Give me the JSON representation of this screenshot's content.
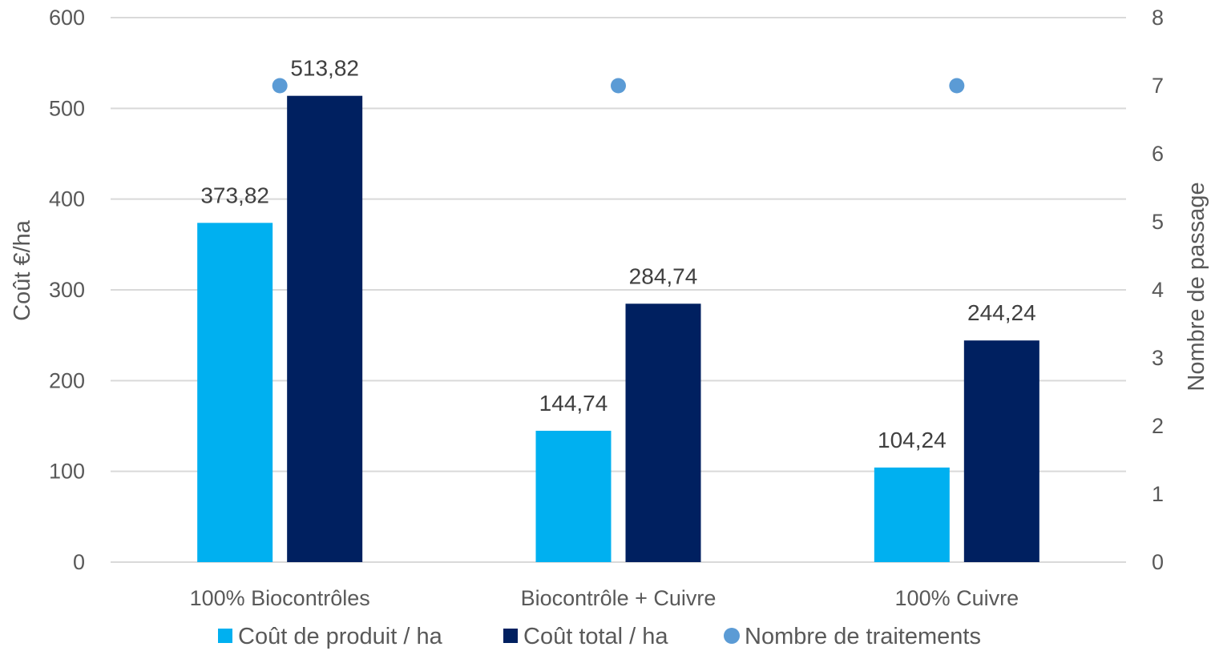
{
  "chart_data": {
    "type": "bar",
    "categories": [
      "100% Biocontrôles",
      "Biocontrôle + Cuivre",
      "100% Cuivre"
    ],
    "series": [
      {
        "name": "Coût de produit / ha",
        "type": "bar",
        "axis": "left",
        "color": "#00B0F0",
        "values": [
          373.82,
          144.74,
          104.24
        ],
        "labels": [
          "373,82",
          "144,74",
          "104,24"
        ]
      },
      {
        "name": "Coût total / ha",
        "type": "bar",
        "axis": "left",
        "color": "#002060",
        "values": [
          513.82,
          284.74,
          244.24
        ],
        "labels": [
          "513,82",
          "284,74",
          "244,24"
        ]
      },
      {
        "name": "Nombre de traitements",
        "type": "scatter",
        "axis": "right",
        "color": "#5B9BD5",
        "values": [
          7,
          7,
          7
        ]
      }
    ],
    "ylabel": "Coût €/ha",
    "ylim": [
      0,
      600
    ],
    "yticks": [
      "0",
      "100",
      "200",
      "300",
      "400",
      "500",
      "600"
    ],
    "y2label": "Nombre de passage",
    "y2lim": [
      0,
      8
    ],
    "y2ticks": [
      "0",
      "1",
      "2",
      "3",
      "4",
      "5",
      "6",
      "7",
      "8"
    ],
    "grid": true,
    "legend_position": "bottom"
  }
}
